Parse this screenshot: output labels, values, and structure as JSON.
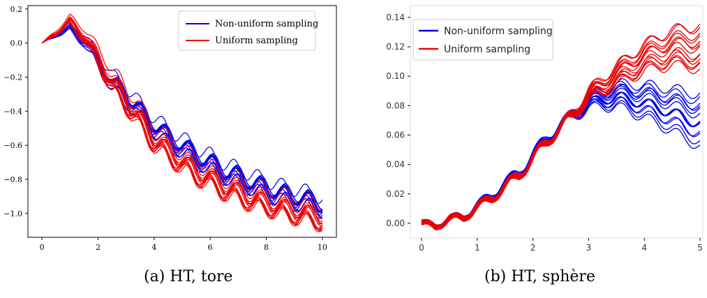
{
  "captions": {
    "a": "(a) HT, tore",
    "b": "(b) HT, sphère"
  },
  "colors": {
    "non_uniform": "#0000ee",
    "uniform": "#ee0000"
  },
  "chart_data": [
    {
      "type": "line",
      "title": "",
      "xlabel": "",
      "ylabel": "",
      "xlim": [
        -0.5,
        10.5
      ],
      "ylim": [
        -1.14,
        0.22
      ],
      "xticks": [
        0,
        2,
        4,
        6,
        8,
        10
      ],
      "xtick_labels": [
        "0",
        "2",
        "4",
        "6",
        "8",
        "10"
      ],
      "yticks": [
        0.2,
        0.0,
        -0.2,
        -0.4,
        -0.6,
        -0.8,
        -1.0
      ],
      "ytick_labels": [
        "0.2",
        "0.0",
        "−0.2",
        "−0.4",
        "−0.6",
        "−0.8",
        "−1.0"
      ],
      "grid": false,
      "legend_position": "top-right",
      "series": [
        {
          "name": "Non-uniform sampling",
          "color": "#0000ee",
          "x": [
            0,
            0.5,
            1,
            1.5,
            2,
            2.5,
            3,
            3.5,
            4,
            4.5,
            5,
            5.5,
            6,
            6.5,
            7,
            7.5,
            8,
            8.5,
            9,
            9.5,
            10
          ],
          "y": [
            0.0,
            0.05,
            0.09,
            0.02,
            -0.1,
            -0.23,
            -0.3,
            -0.4,
            -0.48,
            -0.55,
            -0.6,
            -0.66,
            -0.7,
            -0.75,
            -0.78,
            -0.82,
            -0.85,
            -0.88,
            -0.9,
            -0.92,
            -0.95
          ]
        },
        {
          "name": "Uniform sampling",
          "color": "#ee0000",
          "x": [
            0,
            0.5,
            1,
            1.5,
            2,
            2.5,
            3,
            3.5,
            4,
            4.5,
            5,
            5.5,
            6,
            6.5,
            7,
            7.5,
            8,
            8.5,
            9,
            9.5,
            10
          ],
          "y": [
            0.0,
            0.06,
            0.13,
            0.05,
            -0.08,
            -0.22,
            -0.32,
            -0.44,
            -0.55,
            -0.62,
            -0.68,
            -0.74,
            -0.78,
            -0.83,
            -0.86,
            -0.9,
            -0.92,
            -0.95,
            -0.97,
            -0.99,
            -1.01
          ]
        }
      ]
    },
    {
      "type": "line",
      "title": "",
      "xlabel": "",
      "ylabel": "",
      "xlim": [
        -0.2,
        5.05
      ],
      "ylim": [
        -0.01,
        0.148
      ],
      "xticks": [
        0,
        1,
        2,
        3,
        4,
        5
      ],
      "xtick_labels": [
        "0",
        "1",
        "2",
        "3",
        "4",
        "5"
      ],
      "yticks": [
        0.0,
        0.02,
        0.04,
        0.06,
        0.08,
        0.1,
        0.12,
        0.14
      ],
      "ytick_labels": [
        "0.00",
        "0.02",
        "0.04",
        "0.06",
        "0.08",
        "0.10",
        "0.12",
        "0.14"
      ],
      "grid": false,
      "legend_position": "top-left",
      "series": [
        {
          "name": "Non-uniform sampling",
          "color": "#0000ee",
          "x": [
            0,
            0.25,
            0.5,
            0.75,
            1,
            1.25,
            1.5,
            1.75,
            2,
            2.25,
            2.5,
            2.75,
            3,
            3.25,
            3.5,
            3.75,
            4,
            4.25,
            4.5,
            4.75,
            5
          ],
          "y": [
            0.0,
            -0.002,
            0.003,
            0.004,
            0.012,
            0.018,
            0.027,
            0.034,
            0.046,
            0.058,
            0.066,
            0.075,
            0.082,
            0.085,
            0.087,
            0.085,
            0.083,
            0.08,
            0.077,
            0.073,
            0.07
          ]
        },
        {
          "name": "Uniform sampling",
          "color": "#ee0000",
          "x": [
            0,
            0.25,
            0.5,
            0.75,
            1,
            1.25,
            1.5,
            1.75,
            2,
            2.25,
            2.5,
            2.75,
            3,
            3.25,
            3.5,
            3.75,
            4,
            4.25,
            4.5,
            4.75,
            5
          ],
          "y": [
            0.0,
            -0.002,
            0.003,
            0.004,
            0.011,
            0.017,
            0.025,
            0.033,
            0.044,
            0.056,
            0.065,
            0.076,
            0.087,
            0.094,
            0.101,
            0.107,
            0.113,
            0.117,
            0.12,
            0.121,
            0.12
          ]
        }
      ]
    }
  ]
}
